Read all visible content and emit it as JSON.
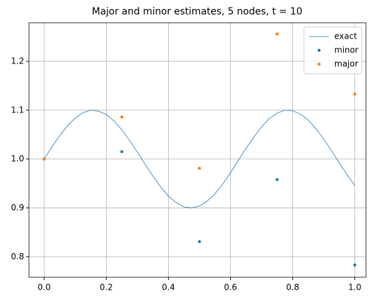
{
  "chart_data": {
    "type": "line",
    "title": "Major and minor estimates, 5 nodes, t = 10",
    "x": [
      0,
      0.025,
      0.05,
      0.075,
      0.1,
      0.125,
      0.15,
      0.175,
      0.2,
      0.225,
      0.25,
      0.275,
      0.3,
      0.325,
      0.35,
      0.375,
      0.4,
      0.425,
      0.45,
      0.475,
      0.5,
      0.525,
      0.55,
      0.575,
      0.6,
      0.625,
      0.65,
      0.675,
      0.7,
      0.725,
      0.75,
      0.775,
      0.8,
      0.825,
      0.85,
      0.875,
      0.9,
      0.925,
      0.95,
      0.975,
      1
    ],
    "series": [
      {
        "name": "exact",
        "color": "#1f77b4",
        "style": "line",
        "values": [
          1.0,
          1.025,
          1.048,
          1.068,
          1.084,
          1.095,
          1.1,
          1.098,
          1.091,
          1.078,
          1.06,
          1.038,
          1.014,
          0.989,
          0.965,
          0.943,
          0.924,
          0.911,
          0.902,
          0.9,
          0.904,
          0.914,
          0.929,
          0.949,
          0.972,
          0.997,
          1.022,
          1.045,
          1.066,
          1.083,
          1.094,
          1.1,
          1.099,
          1.092,
          1.08,
          1.062,
          1.041,
          1.017,
          0.992,
          0.968,
          0.946
        ]
      },
      {
        "name": "minor",
        "color": "#1f77b4",
        "style": "points",
        "x": [
          0,
          0.25,
          0.5,
          0.75,
          1
        ],
        "values": [
          1.0,
          1.015,
          0.831,
          0.958,
          0.783
        ]
      },
      {
        "name": "major",
        "color": "#ff7f0e",
        "style": "points",
        "x": [
          0,
          0.25,
          0.5,
          0.75,
          1
        ],
        "values": [
          1.0,
          1.086,
          0.981,
          1.256,
          1.133
        ]
      }
    ],
    "xlim": [
      -0.049,
      1.036
    ],
    "ylim": [
      0.758,
      1.279
    ],
    "xticks": [
      {
        "value": 0,
        "label": "0.0"
      },
      0.2,
      0.4,
      0.6,
      0.8,
      {
        "value": 1,
        "label": "1.0"
      }
    ],
    "yticks": [
      0.8,
      0.9,
      {
        "value": 1,
        "label": "1.0"
      },
      1.1,
      1.2
    ],
    "grid": true,
    "legend": "upper right"
  }
}
